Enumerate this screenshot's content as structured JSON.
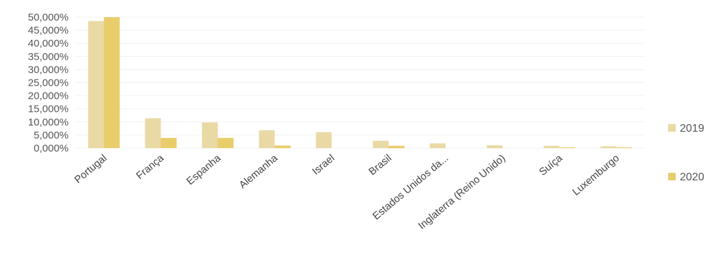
{
  "chart_data": {
    "type": "bar",
    "categories": [
      "Portugal",
      "França",
      "Espanha",
      "Alemanha",
      "Israel",
      "Brasil",
      "Estados Unidos da...",
      "Inglaterra (Reino Unido)",
      "Suíça",
      "Luxemburgo"
    ],
    "series": [
      {
        "name": "2019",
        "color": "#e9d9a4",
        "values": [
          48.5,
          11.4,
          9.8,
          6.8,
          6.1,
          2.8,
          1.8,
          1.1,
          0.9,
          0.7
        ]
      },
      {
        "name": "2020",
        "color": "#e8cd6a",
        "values": [
          50.0,
          3.9,
          3.9,
          1.0,
          0.0,
          0.9,
          0.0,
          0.0,
          0.3,
          0.3
        ]
      }
    ],
    "y_ticks": [
      "0,000%",
      "5,000%",
      "10,000%",
      "15,000%",
      "20,000%",
      "25,000%",
      "30,000%",
      "35,000%",
      "40,000%",
      "45,000%",
      "50,000%"
    ],
    "ylim": [
      0,
      50
    ],
    "grid": true,
    "legend_position": "right",
    "title": "",
    "xlabel": "",
    "ylabel": ""
  }
}
